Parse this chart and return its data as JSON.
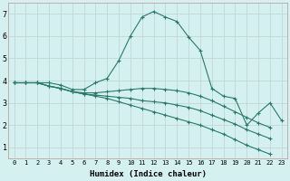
{
  "xlabel": "Humidex (Indice chaleur)",
  "bg_color": "#d4f0f0",
  "grid_color": "#c0d8d8",
  "line_color": "#2a7a6a",
  "xlim": [
    -0.5,
    23.5
  ],
  "ylim": [
    0.5,
    7.5
  ],
  "xticks": [
    0,
    1,
    2,
    3,
    4,
    5,
    6,
    7,
    8,
    9,
    10,
    11,
    12,
    13,
    14,
    15,
    16,
    17,
    18,
    19,
    20,
    21,
    22,
    23
  ],
  "yticks": [
    1,
    2,
    3,
    4,
    5,
    6,
    7
  ],
  "lines": [
    {
      "x": [
        0,
        1,
        2,
        3,
        4,
        5,
        6,
        7,
        8,
        9,
        10,
        11,
        12,
        13,
        14,
        15,
        16,
        17,
        18,
        19,
        20,
        21,
        22,
        23
      ],
      "y": [
        3.9,
        3.9,
        3.9,
        3.9,
        3.8,
        3.6,
        3.6,
        3.9,
        4.1,
        4.9,
        6.0,
        6.85,
        7.1,
        6.85,
        6.65,
        5.95,
        5.35,
        3.65,
        3.3,
        3.2,
        2.0,
        2.55,
        3.0,
        2.2
      ],
      "marker": "+"
    },
    {
      "x": [
        0,
        1,
        2,
        3,
        4,
        5,
        6,
        7,
        8,
        9,
        10,
        11,
        12,
        13,
        14,
        15,
        16,
        17,
        18,
        19,
        20,
        21,
        22
      ],
      "y": [
        3.9,
        3.9,
        3.9,
        3.75,
        3.65,
        3.5,
        3.45,
        3.45,
        3.5,
        3.55,
        3.6,
        3.65,
        3.65,
        3.6,
        3.55,
        3.45,
        3.3,
        3.1,
        2.85,
        2.6,
        2.35,
        2.1,
        1.9
      ],
      "marker": "+"
    },
    {
      "x": [
        0,
        1,
        2,
        3,
        4,
        5,
        6,
        7,
        8,
        9,
        10,
        11,
        12,
        13,
        14,
        15,
        16,
        17,
        18,
        19,
        20,
        21,
        22
      ],
      "y": [
        3.9,
        3.9,
        3.9,
        3.75,
        3.65,
        3.5,
        3.4,
        3.35,
        3.3,
        3.25,
        3.2,
        3.1,
        3.05,
        3.0,
        2.9,
        2.8,
        2.65,
        2.45,
        2.25,
        2.05,
        1.8,
        1.6,
        1.4
      ],
      "marker": "+"
    },
    {
      "x": [
        0,
        1,
        2,
        3,
        4,
        5,
        6,
        7,
        8,
        9,
        10,
        11,
        12,
        13,
        14,
        15,
        16,
        17,
        18,
        19,
        20,
        21,
        22
      ],
      "y": [
        3.9,
        3.9,
        3.9,
        3.75,
        3.65,
        3.5,
        3.4,
        3.3,
        3.2,
        3.05,
        2.9,
        2.75,
        2.6,
        2.45,
        2.3,
        2.15,
        2.0,
        1.8,
        1.6,
        1.35,
        1.1,
        0.9,
        0.7
      ],
      "marker": "+"
    }
  ]
}
